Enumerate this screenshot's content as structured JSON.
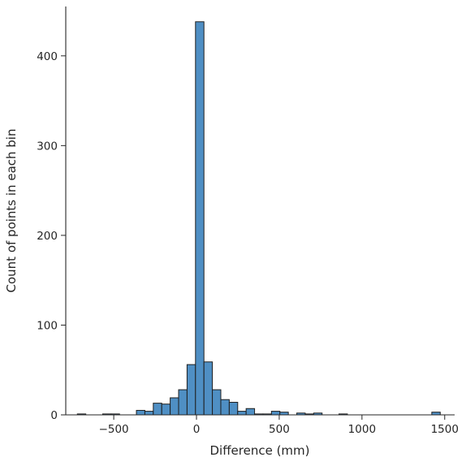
{
  "chart_data": {
    "type": "bar",
    "title": "",
    "xlabel": "Difference (mm)",
    "ylabel": "Count of points in each bin",
    "xlim": [
      -790,
      1560
    ],
    "ylim": [
      0,
      455
    ],
    "xticks": [
      -500,
      0,
      500,
      1000,
      1500
    ],
    "xtick_labels": [
      "−500",
      "0",
      "500",
      "1000",
      "1500"
    ],
    "yticks": [
      0,
      100,
      200,
      300,
      400
    ],
    "ytick_labels": [
      "0",
      "100",
      "200",
      "300",
      "400"
    ],
    "grid": false,
    "legend": "none",
    "bar_color": "#4f8fc4",
    "bin_width": 51,
    "bins": [
      {
        "x0": -720,
        "count": 1
      },
      {
        "x0": -567,
        "count": 1
      },
      {
        "x0": -516,
        "count": 1
      },
      {
        "x0": -363,
        "count": 5
      },
      {
        "x0": -312,
        "count": 4
      },
      {
        "x0": -261,
        "count": 13
      },
      {
        "x0": -210,
        "count": 12
      },
      {
        "x0": -159,
        "count": 19
      },
      {
        "x0": -108,
        "count": 28
      },
      {
        "x0": -57,
        "count": 56
      },
      {
        "x0": -6,
        "count": 438
      },
      {
        "x0": 45,
        "count": 59
      },
      {
        "x0": 96,
        "count": 28
      },
      {
        "x0": 147,
        "count": 17
      },
      {
        "x0": 198,
        "count": 14
      },
      {
        "x0": 249,
        "count": 4
      },
      {
        "x0": 300,
        "count": 7
      },
      {
        "x0": 351,
        "count": 1
      },
      {
        "x0": 402,
        "count": 1
      },
      {
        "x0": 453,
        "count": 4
      },
      {
        "x0": 504,
        "count": 3
      },
      {
        "x0": 606,
        "count": 2
      },
      {
        "x0": 657,
        "count": 1
      },
      {
        "x0": 708,
        "count": 2
      },
      {
        "x0": 861,
        "count": 1
      },
      {
        "x0": 1422,
        "count": 3
      }
    ]
  }
}
